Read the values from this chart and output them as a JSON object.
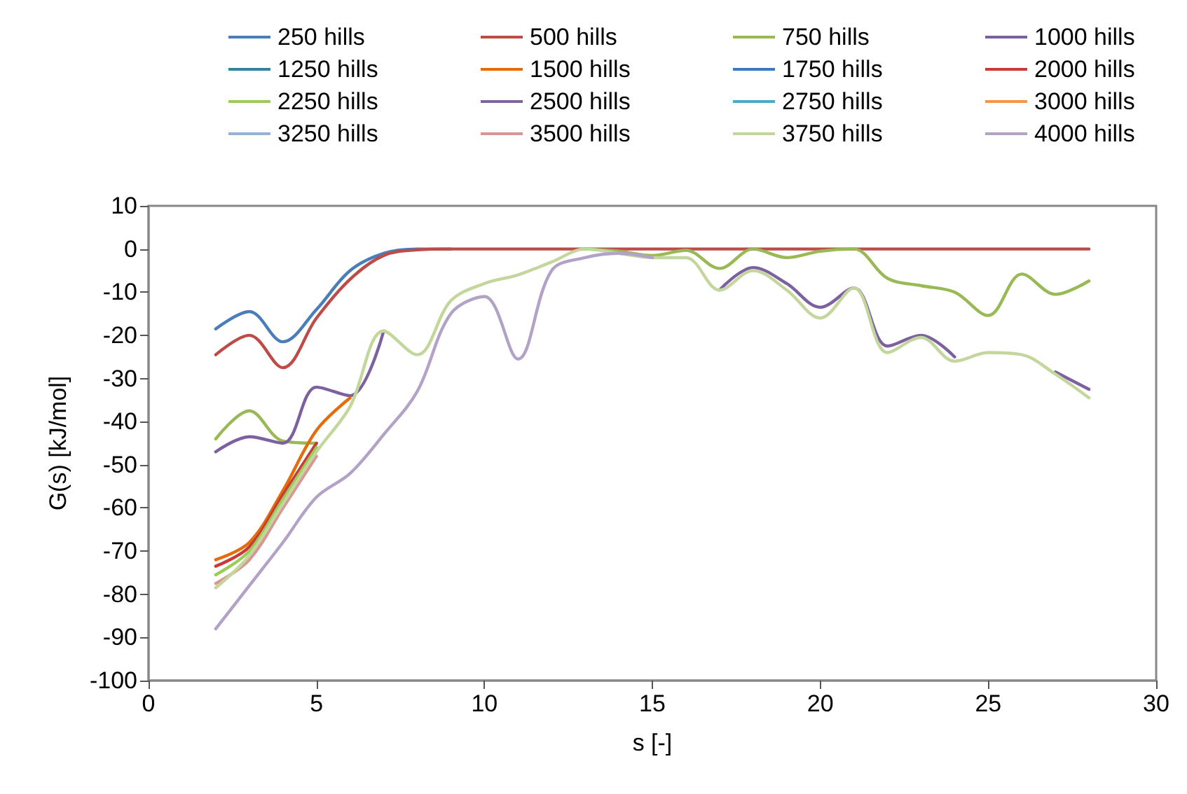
{
  "chart_data": {
    "type": "line",
    "xlabel": "s [-]",
    "ylabel": "G(s) [kJ/mol]",
    "xlim": [
      0,
      30
    ],
    "xticks": [
      0,
      5,
      10,
      15,
      20,
      25,
      30
    ],
    "ylim": [
      -100,
      10
    ],
    "yticks": [
      -100,
      -90,
      -80,
      -70,
      -60,
      -50,
      -40,
      -30,
      -20,
      -10,
      0,
      10
    ],
    "grid": false,
    "legend": "top",
    "marker": "none",
    "line_style": "solid",
    "x": [
      2,
      3,
      4,
      5,
      6,
      7,
      8,
      9,
      10,
      11,
      12,
      13,
      14,
      15,
      16,
      17,
      18,
      19,
      20,
      21,
      22,
      23,
      24,
      25,
      26,
      27,
      28
    ],
    "series": [
      {
        "name": "250 hills",
        "color": "#4a7ebb",
        "values": [
          -18.5,
          -14.5,
          -21.5,
          -14,
          -5,
          -1,
          0,
          0,
          null,
          null,
          null,
          null,
          null,
          null,
          null,
          null,
          null,
          null,
          null,
          null,
          null,
          null,
          null,
          null,
          null,
          null,
          null
        ]
      },
      {
        "name": "500 hills",
        "color": "#be4b48",
        "values": [
          -24.5,
          -20,
          -27.5,
          -16,
          -7,
          -1.5,
          -0.2,
          0,
          0,
          0,
          0,
          0,
          0,
          0,
          0,
          0,
          0,
          0,
          0,
          0,
          0,
          0,
          0,
          0,
          0,
          0,
          0
        ]
      },
      {
        "name": "750 hills",
        "color": "#98b954",
        "values": [
          -44,
          -37.5,
          -44.5,
          -45,
          null,
          null,
          null,
          null,
          null,
          null,
          null,
          0,
          -0.5,
          -1.5,
          -0.3,
          -4.5,
          0,
          -2,
          -0.5,
          0,
          -6.8,
          -8.5,
          -10,
          -15.4,
          -5.8,
          -10.5,
          -7.4
        ]
      },
      {
        "name": "1000 hills",
        "color": "#7d60a0",
        "values": [
          -47,
          -43.5,
          -45,
          -32,
          -34,
          -19,
          null,
          null,
          null,
          null,
          null,
          null,
          null,
          null,
          null,
          -9.5,
          -4.3,
          -8,
          -13.5,
          -9,
          -22.5,
          -20,
          -25,
          null,
          null,
          -28.5,
          -32.5
        ]
      },
      {
        "name": "1250 hills",
        "color": "#31859c",
        "values": [
          null,
          null,
          null,
          null,
          null,
          null,
          null,
          null,
          null,
          null,
          null,
          null,
          null,
          null,
          null,
          null,
          null,
          null,
          null,
          null,
          null,
          null,
          null,
          null,
          null,
          null,
          null
        ]
      },
      {
        "name": "1500 hills",
        "color": "#e46c0a",
        "values": [
          -72,
          -68,
          -56,
          -42,
          -34.5,
          null,
          null,
          null,
          null,
          null,
          null,
          null,
          null,
          null,
          null,
          null,
          null,
          null,
          null,
          null,
          null,
          null,
          null,
          null,
          null,
          null,
          null
        ]
      },
      {
        "name": "1750 hills",
        "color": "#3c78c3",
        "values": [
          null,
          null,
          null,
          null,
          null,
          null,
          null,
          null,
          null,
          null,
          null,
          null,
          null,
          null,
          null,
          null,
          null,
          null,
          null,
          null,
          null,
          null,
          null,
          null,
          null,
          null,
          null
        ]
      },
      {
        "name": "2000 hills",
        "color": "#c83b38",
        "values": [
          -73.5,
          -69,
          -57,
          -45,
          null,
          null,
          null,
          null,
          null,
          null,
          null,
          null,
          null,
          null,
          null,
          null,
          null,
          null,
          null,
          null,
          null,
          null,
          null,
          null,
          null,
          null,
          null
        ]
      },
      {
        "name": "2250 hills",
        "color": "#9bcb5b",
        "values": [
          -75.5,
          -70,
          -58,
          -46,
          null,
          null,
          null,
          null,
          null,
          null,
          null,
          null,
          null,
          null,
          null,
          null,
          null,
          null,
          null,
          null,
          null,
          null,
          null,
          null,
          null,
          null,
          null
        ]
      },
      {
        "name": "2500 hills",
        "color": "#8064a2",
        "values": [
          null,
          null,
          null,
          null,
          null,
          null,
          null,
          null,
          null,
          null,
          null,
          null,
          null,
          null,
          null,
          null,
          null,
          null,
          null,
          null,
          null,
          null,
          null,
          null,
          null,
          null,
          null
        ]
      },
      {
        "name": "2750 hills",
        "color": "#4bacc6",
        "values": [
          null,
          null,
          null,
          null,
          null,
          null,
          null,
          null,
          null,
          null,
          null,
          null,
          null,
          null,
          null,
          null,
          null,
          null,
          null,
          null,
          null,
          null,
          null,
          null,
          null,
          null,
          null
        ]
      },
      {
        "name": "3000 hills",
        "color": "#f79646",
        "values": [
          null,
          null,
          null,
          null,
          null,
          null,
          null,
          null,
          null,
          null,
          null,
          null,
          null,
          null,
          null,
          null,
          null,
          null,
          null,
          null,
          null,
          null,
          null,
          null,
          null,
          null,
          null
        ]
      },
      {
        "name": "3250 hills",
        "color": "#95b3d7",
        "values": [
          null,
          null,
          null,
          null,
          null,
          null,
          null,
          null,
          null,
          null,
          null,
          null,
          null,
          null,
          null,
          null,
          null,
          null,
          null,
          null,
          null,
          null,
          null,
          null,
          null,
          null,
          null
        ]
      },
      {
        "name": "3500 hills",
        "color": "#d99694",
        "values": [
          -77.5,
          -72,
          -60,
          -48,
          null,
          null,
          null,
          null,
          null,
          null,
          null,
          null,
          null,
          null,
          null,
          null,
          null,
          null,
          null,
          null,
          null,
          null,
          null,
          null,
          null,
          null,
          null
        ]
      },
      {
        "name": "3750 hills",
        "color": "#c3d69b",
        "values": [
          -78.5,
          -71,
          -59,
          -47,
          -36.5,
          -19,
          -24.5,
          -12,
          -8,
          -6,
          -3,
          0,
          -1,
          -2,
          -2,
          -9.5,
          -5,
          -9.5,
          -16,
          -9,
          -24,
          -20.5,
          -26,
          -24,
          -24.5,
          -29,
          -34.5
        ]
      },
      {
        "name": "4000 hills",
        "color": "#b3a2c7",
        "values": [
          -88,
          -78,
          -68,
          -57.5,
          -52,
          -43,
          -33,
          -15,
          -11,
          -25.5,
          -5,
          -2,
          -1,
          -2,
          null,
          null,
          null,
          null,
          null,
          null,
          null,
          null,
          null,
          null,
          null,
          null,
          null
        ]
      }
    ]
  }
}
